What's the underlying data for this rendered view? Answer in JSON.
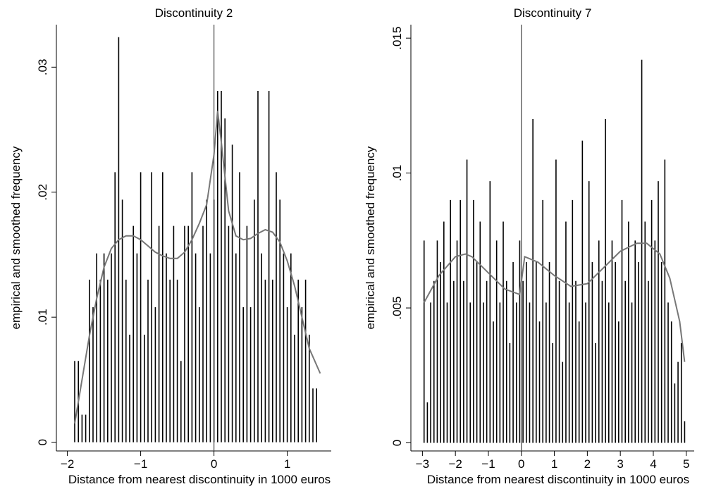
{
  "chart_data": [
    {
      "type": "bar",
      "title": "Discontinuity 2",
      "xlabel": "Distance from nearest discontinuity in 1000 euros",
      "ylabel": "empirical and smoothed frequency",
      "xlim": [
        -2.15,
        1.6
      ],
      "ylim": [
        -0.0007,
        0.0334
      ],
      "xticks": [
        {
          "value": -2,
          "label": "−2"
        },
        {
          "value": -1,
          "label": "−1"
        },
        0,
        1
      ],
      "yticks": [
        0,
        {
          "value": 0.01,
          "label": ".01"
        },
        {
          "value": 0.02,
          "label": ".02"
        },
        {
          "value": 0.03,
          "label": ".03"
        }
      ],
      "xline": 0,
      "bar_color": "#000000",
      "line_color": "#777777",
      "x": [
        -1.9,
        -1.85,
        -1.8,
        -1.75,
        -1.7,
        -1.65,
        -1.6,
        -1.55,
        -1.5,
        -1.45,
        -1.4,
        -1.35,
        -1.3,
        -1.25,
        -1.2,
        -1.15,
        -1.1,
        -1.05,
        -1.0,
        -0.95,
        -0.9,
        -0.85,
        -0.8,
        -0.75,
        -0.7,
        -0.65,
        -0.6,
        -0.55,
        -0.5,
        -0.45,
        -0.4,
        -0.35,
        -0.3,
        -0.25,
        -0.2,
        -0.15,
        -0.1,
        -0.05,
        0,
        0.05,
        0.1,
        0.15,
        0.2,
        0.25,
        0.3,
        0.35,
        0.4,
        0.45,
        0.5,
        0.55,
        0.6,
        0.65,
        0.7,
        0.75,
        0.8,
        0.85,
        0.9,
        0.95,
        1.0,
        1.05,
        1.1,
        1.15,
        1.2,
        1.25,
        1.3,
        1.35,
        1.4
      ],
      "values": [
        0.0065,
        0.0065,
        0.0022,
        0.0022,
        0.013,
        0.0108,
        0.0151,
        0.013,
        0.0151,
        0.013,
        0.0151,
        0.0216,
        0.0324,
        0.0194,
        0.013,
        0.0086,
        0.0173,
        0.0151,
        0.0216,
        0.0086,
        0.013,
        0.0216,
        0.0108,
        0.0173,
        0.0216,
        0.0151,
        0.013,
        0.0173,
        0.013,
        0.0065,
        0.0173,
        0.0173,
        0.0216,
        0.0151,
        0.0108,
        0.0173,
        0.0194,
        0.0151,
        0.0194,
        0.0281,
        0.0281,
        0.0259,
        0.0173,
        0.0238,
        0.0151,
        0.0216,
        0.0108,
        0.0173,
        0.0108,
        0.0194,
        0.0281,
        0.0151,
        0.013,
        0.0281,
        0.013,
        0.0216,
        0.0194,
        0.0151,
        0.0108,
        0.0151,
        0.0086,
        0.013,
        0.0108,
        0.013,
        0.0086,
        0.0043,
        0.0043
      ],
      "smooth": {
        "x": [
          -1.9,
          -1.8,
          -1.7,
          -1.6,
          -1.5,
          -1.4,
          -1.3,
          -1.2,
          -1.1,
          -1.0,
          -0.9,
          -0.8,
          -0.7,
          -0.6,
          -0.5,
          -0.4,
          -0.3,
          -0.2,
          -0.1,
          0,
          0.05,
          0.1,
          0.2,
          0.3,
          0.4,
          0.5,
          0.6,
          0.7,
          0.8,
          0.9,
          1.0,
          1.1,
          1.2,
          1.3,
          1.45
        ],
        "values": [
          0.0015,
          0.005,
          0.0085,
          0.0115,
          0.014,
          0.0155,
          0.0162,
          0.0165,
          0.0165,
          0.0162,
          0.0157,
          0.0152,
          0.0149,
          0.0147,
          0.0147,
          0.0152,
          0.0162,
          0.0175,
          0.019,
          0.023,
          0.0265,
          0.024,
          0.0185,
          0.0165,
          0.0162,
          0.0163,
          0.0167,
          0.017,
          0.0168,
          0.016,
          0.0145,
          0.0125,
          0.01,
          0.0075,
          0.0055
        ]
      }
    },
    {
      "type": "bar",
      "title": "Discontinuity 7",
      "xlabel": "Distance from nearest discontinuity in 1000 euros",
      "ylabel": "empirical and smoothed frequency",
      "xlim": [
        -3.35,
        5.24
      ],
      "ylim": [
        -0.0003,
        0.0155
      ],
      "xticks": [
        {
          "value": -3,
          "label": "−3"
        },
        {
          "value": -2,
          "label": "−2"
        },
        {
          "value": -1,
          "label": "−1"
        },
        0,
        1,
        2,
        3,
        4,
        5
      ],
      "yticks": [
        0,
        {
          "value": 0.005,
          "label": ".005"
        },
        {
          "value": 0.01,
          "label": ".01"
        },
        {
          "value": 0.015,
          "label": ".015"
        }
      ],
      "xline": 0,
      "bar_color": "#000000",
      "line_color": "#777777",
      "x": [
        -2.95,
        -2.85,
        -2.75,
        -2.65,
        -2.55,
        -2.45,
        -2.35,
        -2.25,
        -2.15,
        -2.05,
        -1.95,
        -1.85,
        -1.75,
        -1.65,
        -1.55,
        -1.45,
        -1.35,
        -1.25,
        -1.15,
        -1.05,
        -0.95,
        -0.85,
        -0.75,
        -0.65,
        -0.55,
        -0.45,
        -0.35,
        -0.25,
        -0.15,
        -0.05,
        0.05,
        0.15,
        0.25,
        0.35,
        0.45,
        0.55,
        0.65,
        0.75,
        0.85,
        0.95,
        1.05,
        1.15,
        1.25,
        1.35,
        1.45,
        1.55,
        1.65,
        1.75,
        1.85,
        1.95,
        2.05,
        2.15,
        2.25,
        2.35,
        2.45,
        2.55,
        2.65,
        2.75,
        2.85,
        2.95,
        3.05,
        3.15,
        3.25,
        3.35,
        3.45,
        3.55,
        3.65,
        3.75,
        3.85,
        3.95,
        4.05,
        4.15,
        4.25,
        4.35,
        4.45,
        4.55,
        4.65,
        4.75,
        4.85,
        4.95
      ],
      "values": [
        0.0075,
        0.0015,
        0.0052,
        0.006,
        0.0075,
        0.0067,
        0.0082,
        0.0052,
        0.009,
        0.006,
        0.0075,
        0.009,
        0.006,
        0.0105,
        0.0052,
        0.009,
        0.0067,
        0.0082,
        0.0052,
        0.006,
        0.0097,
        0.0045,
        0.0075,
        0.0052,
        0.0082,
        0.006,
        0.0037,
        0.0067,
        0.0052,
        0.0075,
        0.006,
        0.0067,
        0.0052,
        0.012,
        0.0067,
        0.0045,
        0.009,
        0.0052,
        0.0067,
        0.0037,
        0.0105,
        0.006,
        0.003,
        0.0082,
        0.0052,
        0.009,
        0.006,
        0.0045,
        0.0112,
        0.0052,
        0.0097,
        0.0067,
        0.0037,
        0.0075,
        0.006,
        0.012,
        0.0052,
        0.0075,
        0.0067,
        0.0045,
        0.009,
        0.006,
        0.0082,
        0.0052,
        0.0075,
        0.0067,
        0.0142,
        0.0082,
        0.006,
        0.009,
        0.0075,
        0.0097,
        0.0067,
        0.0105,
        0.0052,
        0.0045,
        0.0022,
        0.003,
        0.0037,
        0.0008
      ],
      "smooth": {
        "x": [
          -2.95,
          -2.5,
          -2.0,
          -1.7,
          -1.5,
          -1.0,
          -0.5,
          -0.05,
          0.1,
          0.5,
          1.0,
          1.5,
          2.0,
          2.5,
          3.0,
          3.5,
          3.8,
          4.2,
          4.5,
          4.8,
          4.95
        ],
        "values": [
          0.0052,
          0.0062,
          0.0069,
          0.007,
          0.0069,
          0.0063,
          0.0057,
          0.0055,
          0.0069,
          0.0067,
          0.0062,
          0.0058,
          0.0059,
          0.0065,
          0.0071,
          0.0074,
          0.0074,
          0.007,
          0.0061,
          0.0045,
          0.003
        ]
      }
    }
  ]
}
